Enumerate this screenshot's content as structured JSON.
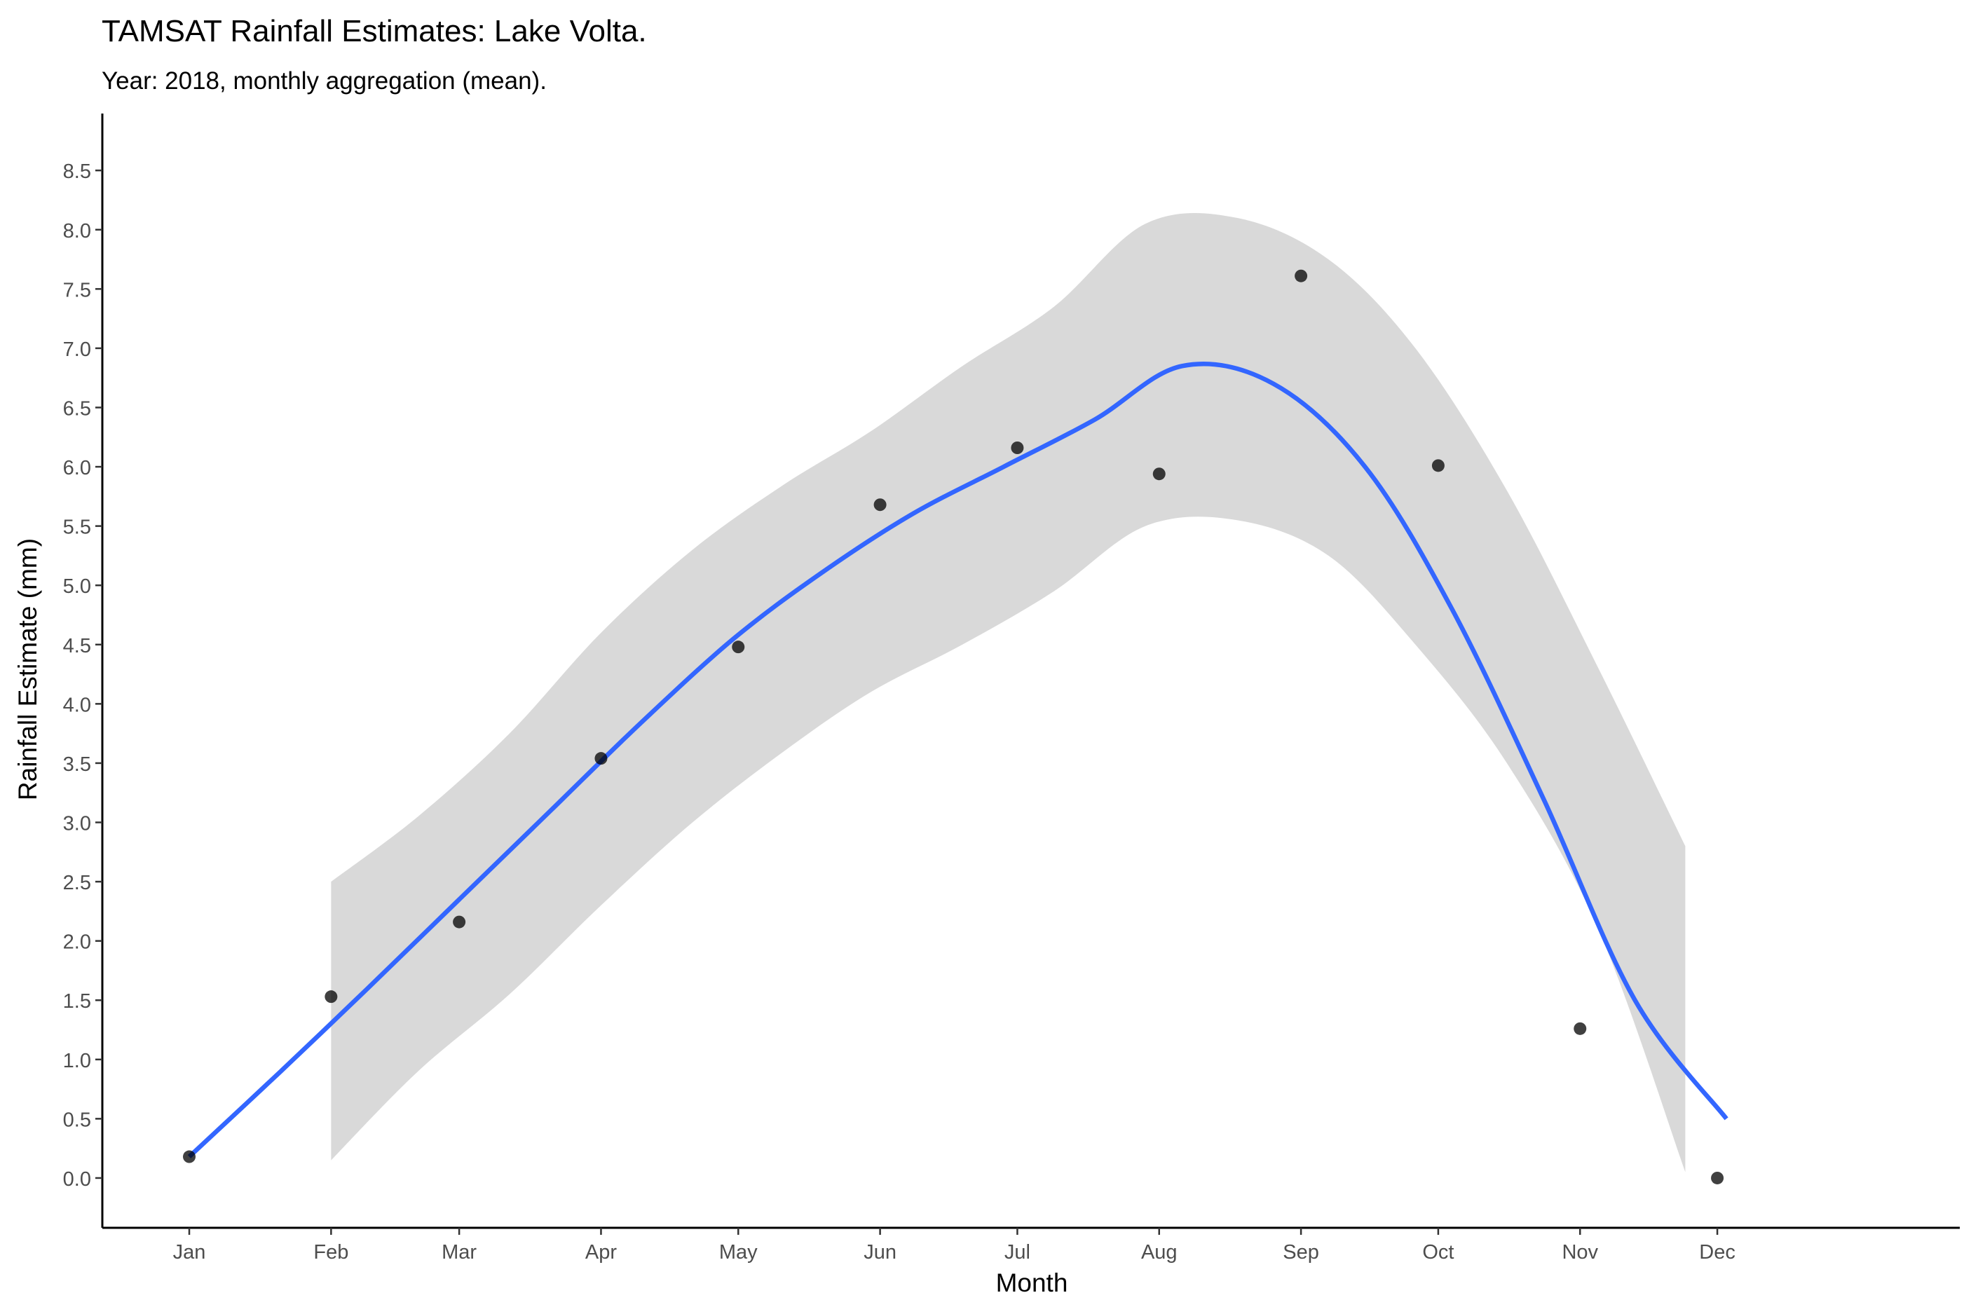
{
  "chart_data": {
    "type": "scatter",
    "title": "TAMSAT Rainfall Estimates: Lake Volta.",
    "subtitle": "Year: 2018, monthly aggregation (mean).",
    "xlabel": "Month",
    "ylabel": "Rainfall Estimate (mm)",
    "categories": [
      "Jan",
      "Feb",
      "Mar",
      "Apr",
      "May",
      "Jun",
      "Jul",
      "Aug",
      "Sep",
      "Oct",
      "Nov",
      "Dec"
    ],
    "x_ticks": [
      "2018-01-01",
      "2018-02-01",
      "2018-03-01",
      "2018-04-01",
      "2018-05-01",
      "2018-06-01",
      "2018-07-01",
      "2018-08-01",
      "2018-09-01",
      "2018-10-01",
      "2018-11-01",
      "2018-12-01"
    ],
    "xlim": [
      "2017-12-13",
      "2019-01-23"
    ],
    "ylim": [
      -0.42,
      8.98
    ],
    "y_ticks": [
      "0.0",
      "0.5",
      "1.0",
      "1.5",
      "2.0",
      "2.5",
      "3.0",
      "3.5",
      "4.0",
      "4.5",
      "5.0",
      "5.5",
      "6.0",
      "6.5",
      "7.0",
      "7.5",
      "8.0",
      "8.5"
    ],
    "grid": false,
    "points": {
      "x": [
        "2018-01-01",
        "2018-02-01",
        "2018-03-01",
        "2018-04-01",
        "2018-05-01",
        "2018-06-01",
        "2018-07-01",
        "2018-08-01",
        "2018-09-01",
        "2018-10-01",
        "2018-11-01",
        "2018-12-01"
      ],
      "y": [
        0.18,
        1.53,
        2.16,
        3.54,
        4.48,
        5.68,
        6.16,
        5.94,
        7.61,
        6.01,
        1.26,
        0.0
      ],
      "color": "#000000"
    },
    "smooth": {
      "color": "#3366FF",
      "ribbon_color": "#D9D9D9",
      "x": [
        "2018-01-01",
        "2018-01-21",
        "2018-02-09",
        "2018-03-01",
        "2018-03-21",
        "2018-04-10",
        "2018-04-30",
        "2018-05-19",
        "2018-06-08",
        "2018-06-28",
        "2018-07-18",
        "2018-08-06",
        "2018-08-26",
        "2018-09-15",
        "2018-10-04",
        "2018-10-24",
        "2018-11-13",
        "2018-12-03"
      ],
      "y": [
        0.18,
        0.9,
        1.6,
        2.35,
        3.1,
        3.85,
        4.55,
        5.1,
        5.6,
        6.0,
        6.4,
        6.85,
        6.7,
        6.0,
        4.8,
        3.2,
        1.5,
        0.5
      ],
      "ribbon_x": [
        "2018-02-01",
        "2018-02-20",
        "2018-03-12",
        "2018-04-01",
        "2018-04-21",
        "2018-05-11",
        "2018-05-30",
        "2018-06-19",
        "2018-07-09",
        "2018-07-29",
        "2018-08-18",
        "2018-09-07",
        "2018-09-26",
        "2018-10-16",
        "2018-11-05",
        "2018-11-24"
      ],
      "ribbon_upper": [
        2.5,
        3.05,
        3.75,
        4.6,
        5.3,
        5.85,
        6.3,
        6.85,
        7.35,
        8.05,
        8.1,
        7.75,
        7.0,
        5.8,
        4.3,
        2.8
      ],
      "ribbon_lower": [
        0.15,
        0.9,
        1.55,
        2.3,
        3.0,
        3.6,
        4.1,
        4.5,
        4.95,
        5.5,
        5.55,
        5.25,
        4.5,
        3.5,
        2.1,
        0.05
      ]
    }
  }
}
